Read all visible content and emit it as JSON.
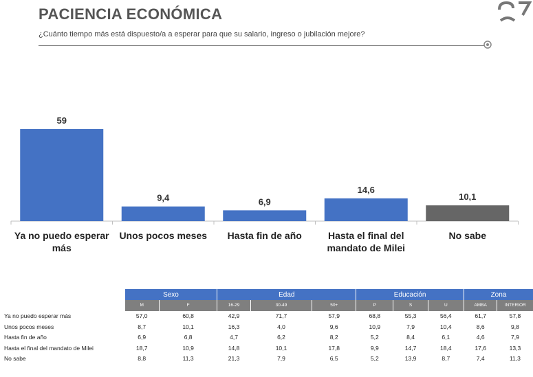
{
  "header": {
    "title": "PACIENCIA ECONÓMICA",
    "subtitle": "¿Cuánto tiempo más está dispuesto/a a esperar para que su salario, ingreso o jubilación mejore?"
  },
  "colors": {
    "bar": "#4472c4",
    "bar_no_sabe": "#666666",
    "header_group": "#4472c4",
    "header_sub": "#7f7f7f"
  },
  "chart_data": {
    "type": "bar",
    "title": "PACIENCIA ECONÓMICA",
    "xlabel": "",
    "ylabel": "",
    "categories": [
      "Ya no puedo esperar más",
      "Unos pocos meses",
      "Hasta fin de año",
      "Hasta el final del mandato de Milei",
      "No sabe"
    ],
    "values": [
      59,
      9.4,
      6.9,
      14.6,
      10.1
    ],
    "value_labels": [
      "59",
      "9,4",
      "6,9",
      "14,6",
      "10,1"
    ],
    "ylim": [
      0,
      65
    ],
    "grid": false,
    "legend": "none"
  },
  "table": {
    "groups": [
      "Sexo",
      "Edad",
      "Educación",
      "Zona"
    ],
    "subheaders": [
      "M",
      "F",
      "16-29",
      "30-49",
      "50+",
      "P",
      "S",
      "U",
      "AMBA",
      "INTERIOR"
    ],
    "rows": [
      {
        "label": "Ya no puedo esperar más",
        "values": [
          "57,0",
          "60,8",
          "42,9",
          "71,7",
          "57,9",
          "68,8",
          "55,3",
          "56,4",
          "61,7",
          "57,8"
        ]
      },
      {
        "label": "Unos pocos meses",
        "values": [
          "8,7",
          "10,1",
          "16,3",
          "4,0",
          "9,6",
          "10,9",
          "7,9",
          "10,4",
          "8,6",
          "9,8"
        ]
      },
      {
        "label": "Hasta fin de año",
        "values": [
          "6,9",
          "6,8",
          "4,7",
          "6,2",
          "8,2",
          "5,2",
          "8,4",
          "6,1",
          "4,6",
          "7,9"
        ]
      },
      {
        "label": "Hasta el final del mandato de Milei",
        "values": [
          "18,7",
          "10,9",
          "14,8",
          "10,1",
          "17,8",
          "9,9",
          "14,7",
          "18,4",
          "17,6",
          "13,3"
        ]
      },
      {
        "label": "No sabe",
        "values": [
          "8,8",
          "11,3",
          "21,3",
          "7,9",
          "6,5",
          "5,2",
          "13,9",
          "8,7",
          "7,4",
          "11,3"
        ]
      }
    ]
  }
}
